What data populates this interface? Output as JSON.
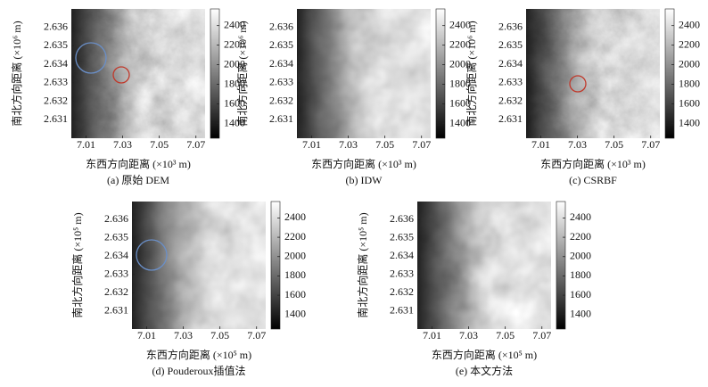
{
  "chart_data": [
    {
      "type": "heatmap",
      "caption": "(a) 原始 DEM",
      "xlabel": "东西方向距离 (×10³ m)",
      "ylabel": "南北方向距离 (×10⁶ m)",
      "xlim": [
        7.002,
        7.075
      ],
      "xticks": [
        7.01,
        7.03,
        7.05,
        7.07
      ],
      "ylim": [
        2.63,
        2.637
      ],
      "yticks": [
        2.631,
        2.632,
        2.633,
        2.634,
        2.635,
        2.636
      ],
      "clim": [
        1250,
        2570
      ],
      "cticks": [
        1400,
        1600,
        1800,
        2000,
        2200,
        2400
      ]
    },
    {
      "type": "heatmap",
      "caption": "(b) IDW",
      "xlabel": "东西方向距离 (×10³ m)",
      "ylabel": "南北方向距离 (×10⁶ m)",
      "xlim": [
        7.002,
        7.075
      ],
      "xticks": [
        7.01,
        7.03,
        7.05,
        7.07
      ],
      "ylim": [
        2.63,
        2.637
      ],
      "yticks": [
        2.631,
        2.632,
        2.633,
        2.634,
        2.635,
        2.636
      ],
      "clim": [
        1250,
        2570
      ],
      "cticks": [
        1400,
        1600,
        1800,
        2000,
        2200,
        2400
      ]
    },
    {
      "type": "heatmap",
      "caption": "(c) CSRBF",
      "xlabel": "东西方向距离 (×10³ m)",
      "ylabel": "南北方向距离 (×10⁶ m)",
      "xlim": [
        7.002,
        7.075
      ],
      "xticks": [
        7.01,
        7.03,
        7.05,
        7.07
      ],
      "ylim": [
        2.63,
        2.637
      ],
      "yticks": [
        2.631,
        2.632,
        2.633,
        2.634,
        2.635,
        2.636
      ],
      "clim": [
        1250,
        2570
      ],
      "cticks": [
        1400,
        1600,
        1800,
        2000,
        2200,
        2400
      ]
    },
    {
      "type": "heatmap",
      "caption": "(d) Pouderoux插值法",
      "xlabel": "东西方向距离 (×10⁵ m)",
      "ylabel": "南北方向距离 (×10⁵ m)",
      "xlim": [
        7.002,
        7.075
      ],
      "xticks": [
        7.01,
        7.03,
        7.05,
        7.07
      ],
      "ylim": [
        2.63,
        2.637
      ],
      "yticks": [
        2.631,
        2.632,
        2.633,
        2.634,
        2.635,
        2.636
      ],
      "clim": [
        1250,
        2570
      ],
      "cticks": [
        1400,
        1600,
        1800,
        2000,
        2200,
        2400
      ]
    },
    {
      "type": "heatmap",
      "caption": "(e) 本文方法",
      "xlabel": "东西方向距离 (×10⁵ m)",
      "ylabel": "南北方向距离 (×10⁵ m)",
      "xlim": [
        7.002,
        7.075
      ],
      "xticks": [
        7.01,
        7.03,
        7.05,
        7.07
      ],
      "ylim": [
        2.63,
        2.637
      ],
      "yticks": [
        2.631,
        2.632,
        2.633,
        2.634,
        2.635,
        2.636
      ],
      "clim": [
        1250,
        2570
      ],
      "cticks": [
        1400,
        1600,
        1800,
        2000,
        2200,
        2400
      ]
    }
  ]
}
